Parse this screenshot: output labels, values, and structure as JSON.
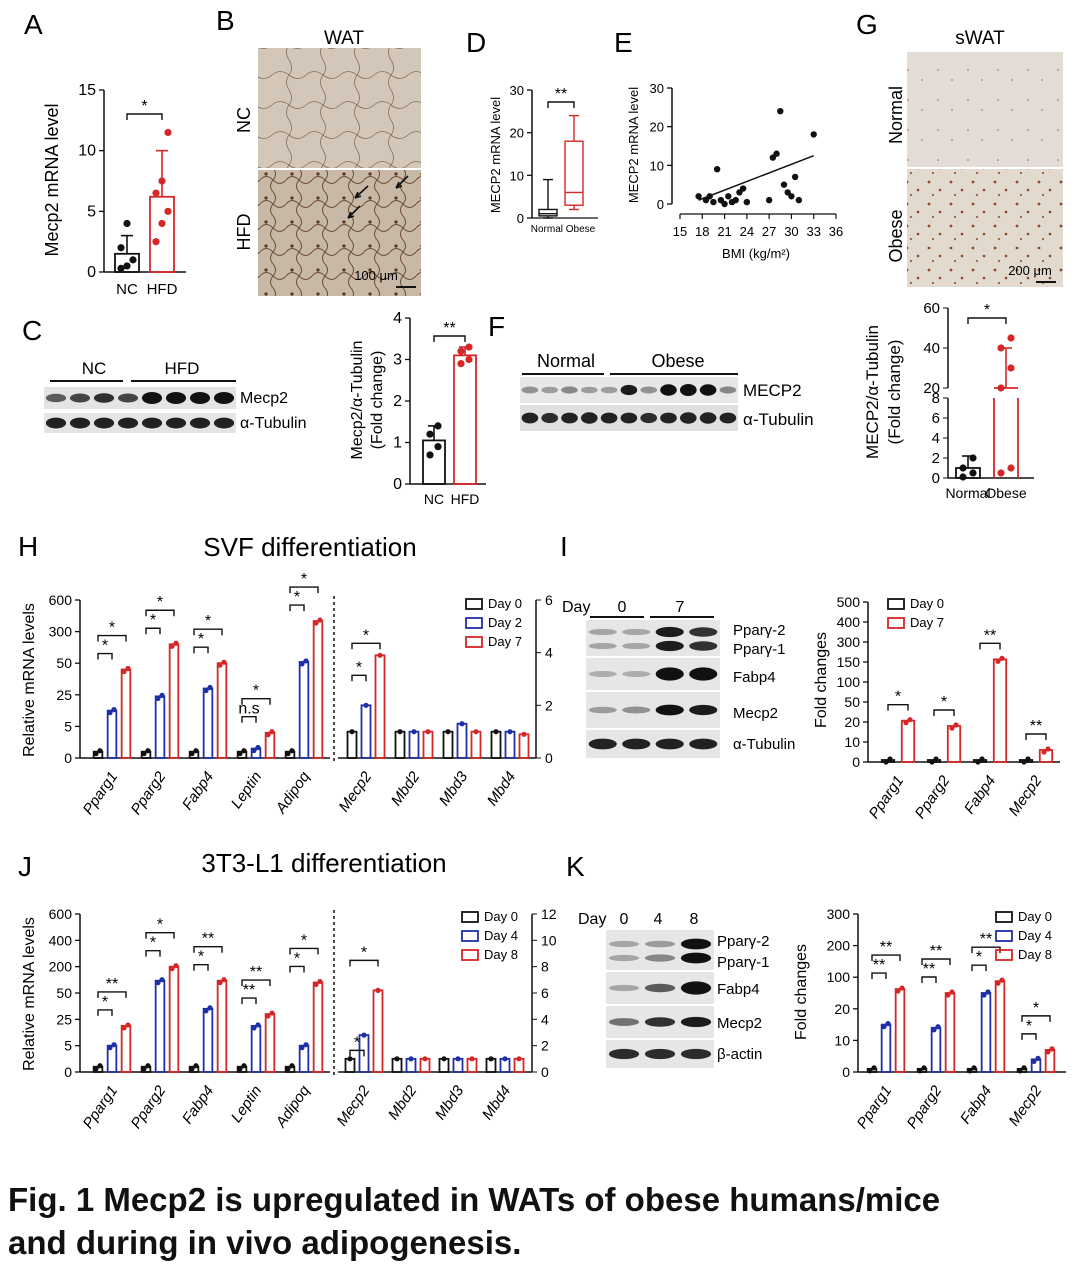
{
  "panel_letters": [
    "A",
    "B",
    "C",
    "D",
    "E",
    "F",
    "G",
    "H",
    "I",
    "J",
    "K"
  ],
  "caption": {
    "line1": "Fig. 1 Mecp2 is upregulated in WATs of obese humans/mice",
    "line2": "and during in vivo adipogenesis."
  },
  "colors": {
    "control": "#111111",
    "treated": "#d62728",
    "day_mid": "#1f2fa6",
    "blot_bg": "#e8e8e8",
    "tissue": "#b9a996"
  },
  "panel_B": {
    "title": "WAT",
    "rows": [
      "NC",
      "HFD"
    ],
    "scale": "100 μm"
  },
  "panel_C": {
    "groups": [
      "NC",
      "HFD"
    ],
    "bands": [
      "Mecp2",
      "α-Tubulin"
    ]
  },
  "panel_F": {
    "groups": [
      "Normal",
      "Obese"
    ],
    "bands": [
      "MECP2",
      "α-Tubulin"
    ]
  },
  "panel_G": {
    "title": "sWAT",
    "rows": [
      "Normal",
      "Obese"
    ],
    "scale": "200 μm"
  },
  "panel_I": {
    "day_label": "Day",
    "days": [
      "0",
      "7"
    ],
    "bands": [
      "Pparγ-2",
      "Pparγ-1",
      "Fabp4",
      "Mecp2",
      "α-Tubulin"
    ]
  },
  "panel_K": {
    "day_label": "Day",
    "days": [
      "0",
      "4",
      "8"
    ],
    "bands": [
      "Pparγ-2",
      "Pparγ-1",
      "Fabp4",
      "Mecp2",
      "β-actin"
    ]
  },
  "chart_data": [
    {
      "panel": "A",
      "type": "bar",
      "categories": [
        "NC",
        "HFD"
      ],
      "values": [
        1.5,
        6.2
      ],
      "errors": [
        1.5,
        3.8
      ],
      "ylabel": "Mecp2 mRNA level",
      "ylim": [
        0,
        15
      ],
      "yticks": [
        0,
        5,
        10,
        15
      ],
      "points": [
        [
          0.3,
          0.5,
          1.0,
          2.0,
          4.0
        ],
        [
          2.5,
          4.0,
          5.0,
          6.5,
          7.5,
          11.5
        ]
      ],
      "significance": "*"
    },
    {
      "panel": "C",
      "type": "bar",
      "categories": [
        "NC",
        "HFD"
      ],
      "values": [
        1.05,
        3.1
      ],
      "errors": [
        0.35,
        0.2
      ],
      "ylabel": "Mecp2/α-Tubulin (Fold change)",
      "ylim": [
        0,
        4
      ],
      "yticks": [
        0,
        1,
        2,
        3,
        4
      ],
      "points": [
        [
          0.7,
          0.9,
          1.2,
          1.4
        ],
        [
          2.9,
          3.0,
          3.2,
          3.3
        ]
      ],
      "significance": "**"
    },
    {
      "panel": "D",
      "type": "box",
      "categories": [
        "Normal",
        "Obese"
      ],
      "ylabel": "MECP2 mRNA level",
      "ylim": [
        0,
        30
      ],
      "yticks": [
        0,
        10,
        20,
        30
      ],
      "boxes": [
        {
          "min": 0,
          "q1": 0.5,
          "median": 1,
          "q3": 2,
          "max": 9
        },
        {
          "min": 2,
          "q1": 3,
          "median": 6,
          "q3": 18,
          "max": 24
        }
      ],
      "significance": "**"
    },
    {
      "panel": "E",
      "type": "scatter",
      "xlabel": "BMI (kg/m²)",
      "ylabel": "MECP2 mRNA level",
      "xlim": [
        15,
        36
      ],
      "ylim": [
        0,
        30
      ],
      "xticks": [
        15,
        18,
        21,
        24,
        27,
        30,
        33,
        36
      ],
      "yticks": [
        0,
        10,
        20,
        30
      ],
      "points": [
        [
          17.5,
          2
        ],
        [
          18.5,
          1
        ],
        [
          19,
          2
        ],
        [
          19.5,
          0.5
        ],
        [
          20,
          9
        ],
        [
          20.5,
          1
        ],
        [
          21,
          0
        ],
        [
          21.5,
          2
        ],
        [
          22,
          0.5
        ],
        [
          22.5,
          1
        ],
        [
          23,
          3
        ],
        [
          23.5,
          4
        ],
        [
          24,
          0.5
        ],
        [
          27,
          1
        ],
        [
          27.5,
          12
        ],
        [
          28,
          13
        ],
        [
          28.5,
          24
        ],
        [
          29,
          5
        ],
        [
          29.5,
          3
        ],
        [
          30,
          2
        ],
        [
          30.5,
          7
        ],
        [
          31,
          1
        ],
        [
          33,
          18
        ]
      ],
      "fit": [
        [
          17.5,
          1.0
        ],
        [
          33,
          12.5
        ]
      ]
    },
    {
      "panel": "G",
      "type": "bar",
      "categories": [
        "Normal",
        "Obese"
      ],
      "values": [
        1.0,
        20
      ],
      "errors": [
        1.2,
        20
      ],
      "ylabel": "MECP2/α-Tubulin (Fold change)",
      "yticks_lower": [
        0,
        2,
        4,
        6,
        8
      ],
      "yticks_upper": [
        20,
        40,
        60
      ],
      "points": [
        [
          0.1,
          0.5,
          1.0,
          2.0
        ],
        [
          0.5,
          1.0,
          20,
          30,
          40,
          45
        ]
      ],
      "significance": "*"
    },
    {
      "panel": "H",
      "type": "bar",
      "title": "SVF differentiation",
      "ylabel": "Relative mRNA  levels",
      "series": [
        {
          "name": "Day 0"
        },
        {
          "name": "Day 2"
        },
        {
          "name": "Day 7"
        }
      ],
      "left": {
        "categories": [
          "Pparg1",
          "Pparg2",
          "Fabp4",
          "Leptin",
          "Adipoq"
        ],
        "yticks": [
          "0",
          "5",
          "25",
          "50",
          "300",
          "600"
        ],
        "values": {
          "Day 0": [
            1,
            1,
            1,
            1,
            1
          ],
          "Day 2": [
            15,
            24,
            30,
            1.5,
            60
          ],
          "Day 7": [
            45,
            200,
            50,
            4,
            400
          ]
        },
        "significance": [
          [
            "*",
            "*"
          ],
          [
            "*",
            "*"
          ],
          [
            "*",
            "*"
          ],
          [
            "n.s",
            "*"
          ],
          [
            "*",
            "*"
          ]
        ]
      },
      "right": {
        "categories": [
          "Mecp2",
          "Mbd2",
          "Mbd3",
          "Mbd4"
        ],
        "yticks": [
          0,
          2,
          4,
          6
        ],
        "values": {
          "Day 0": [
            1.0,
            1.0,
            1.0,
            1.0
          ],
          "Day 2": [
            2.0,
            1.0,
            1.3,
            1.0
          ],
          "Day 7": [
            3.9,
            1.0,
            1.0,
            0.9
          ]
        },
        "significance": [
          [
            "*",
            "*"
          ],
          null,
          null,
          null
        ]
      }
    },
    {
      "panel": "I",
      "type": "bar",
      "ylabel": "Fold changes",
      "series": [
        {
          "name": "Day 0"
        },
        {
          "name": "Day 7"
        }
      ],
      "categories": [
        "Pparg1",
        "Pparg2",
        "Fabp4",
        "Mecp2"
      ],
      "yticks": [
        "0",
        "10",
        "20",
        "50",
        "100",
        "150",
        "300",
        "400",
        "500"
      ],
      "values": {
        "Day 0": [
          1,
          1,
          1,
          1
        ],
        "Day 7": [
          22,
          18,
          170,
          6
        ]
      },
      "significance": [
        "*",
        "*",
        "**",
        "**"
      ]
    },
    {
      "panel": "J",
      "type": "bar",
      "title": "3T3-L1 differentiation",
      "ylabel": "Relative mRNA  levels",
      "series": [
        {
          "name": "Day 0"
        },
        {
          "name": "Day 4"
        },
        {
          "name": "Day 8"
        }
      ],
      "left": {
        "categories": [
          "Pparg1",
          "Pparg2",
          "Fabp4",
          "Leptin",
          "Adipoq"
        ],
        "yticks": [
          "0",
          "5",
          "25",
          "50",
          "200",
          "400",
          "600"
        ],
        "values": {
          "Day 0": [
            1,
            1,
            1,
            1,
            1
          ],
          "Day 4": [
            5,
            120,
            35,
            20,
            5
          ],
          "Day 8": [
            20,
            200,
            120,
            30,
            110
          ]
        },
        "significance": [
          [
            "*",
            "**"
          ],
          [
            "*",
            "*"
          ],
          [
            "*",
            "**"
          ],
          [
            "**",
            "**"
          ],
          [
            "*",
            "*"
          ]
        ]
      },
      "right": {
        "categories": [
          "Mecp2",
          "Mbd2",
          "Mbd3",
          "Mbd4"
        ],
        "yticks": [
          0,
          2,
          4,
          6,
          8,
          10,
          12
        ],
        "values": {
          "Day 0": [
            1.0,
            1.0,
            1.0,
            1.0
          ],
          "Day 4": [
            2.8,
            1.0,
            1.0,
            1.0
          ],
          "Day 8": [
            6.2,
            1.0,
            1.0,
            1.0
          ]
        },
        "significance": [
          [
            "*",
            "*"
          ],
          null,
          null,
          null
        ]
      }
    },
    {
      "panel": "K",
      "type": "bar",
      "ylabel": "Fold changes",
      "series": [
        {
          "name": "Day 0"
        },
        {
          "name": "Day 4"
        },
        {
          "name": "Day 8"
        }
      ],
      "categories": [
        "Pparg1",
        "Pparg2",
        "Fabp4",
        "Mecp2"
      ],
      "yticks": [
        "0",
        "10",
        "20",
        "100",
        "200",
        "300"
      ],
      "values": {
        "Day 0": [
          1,
          1,
          1,
          1
        ],
        "Day 4": [
          15,
          14,
          60,
          4
        ],
        "Day 8": [
          70,
          60,
          90,
          7
        ]
      },
      "significance": [
        [
          "**",
          "**"
        ],
        [
          "**",
          "**"
        ],
        [
          "*",
          "**"
        ],
        [
          "*",
          "*"
        ]
      ]
    }
  ]
}
